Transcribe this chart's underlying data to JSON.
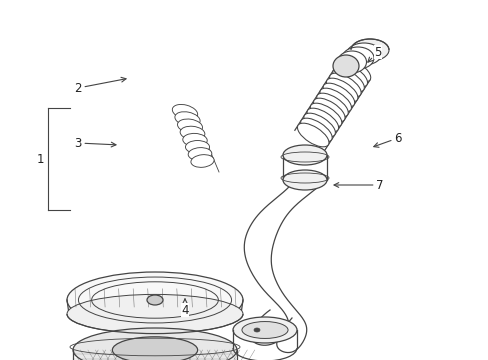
{
  "background_color": "#ffffff",
  "line_color": "#444444",
  "text_color": "#222222",
  "figsize": [
    4.89,
    3.6
  ],
  "dpi": 100
}
